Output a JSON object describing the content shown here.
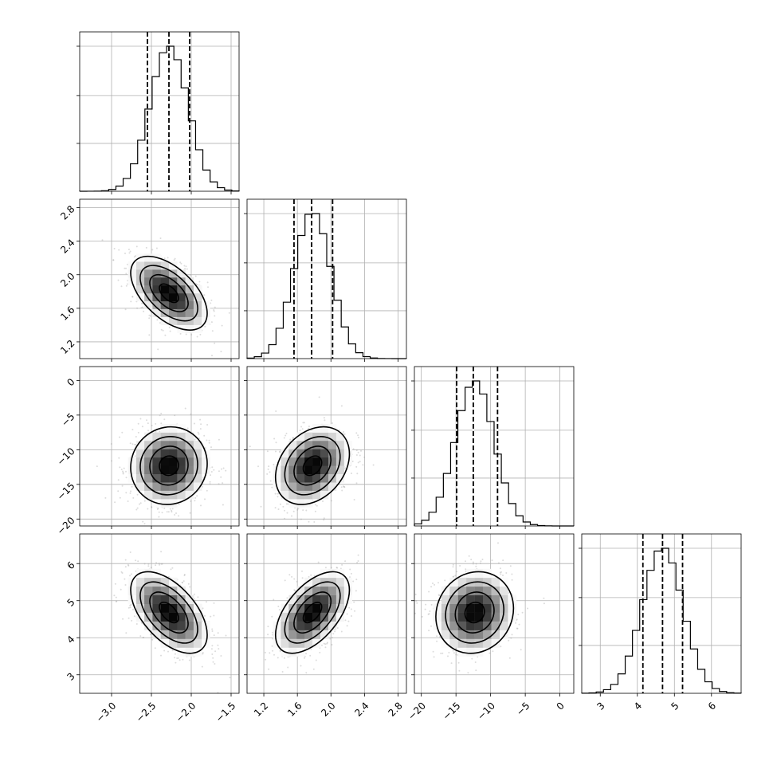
{
  "chart_data": {
    "type": "corner",
    "params": [
      {
        "mean": -2.28,
        "sd": 0.24,
        "range": [
          -3.4,
          -1.4
        ],
        "ticks": [
          -3.0,
          -2.5,
          -2.0,
          -1.5
        ],
        "tick_labels": [
          "−3.0",
          "−2.5",
          "−2.0",
          "−1.5"
        ],
        "quantiles": [
          -2.55,
          -2.28,
          -2.02
        ]
      },
      {
        "mean": 1.78,
        "sd": 0.22,
        "range": [
          1.0,
          2.9
        ],
        "ticks": [
          1.2,
          1.6,
          2.0,
          2.4,
          2.8
        ],
        "tick_labels": [
          "1.2",
          "1.6",
          "2.0",
          "2.4",
          "2.8"
        ],
        "quantiles": [
          1.56,
          1.77,
          2.02
        ]
      },
      {
        "mean": -12.3,
        "sd": 2.8,
        "range": [
          -21,
          2
        ],
        "ticks": [
          -20,
          -15,
          -10,
          -5,
          0
        ],
        "tick_labels": [
          "−20",
          "−15",
          "−10",
          "−5",
          "0"
        ],
        "quantiles": [
          -14.9,
          -12.5,
          -9.0
        ]
      },
      {
        "mean": 4.68,
        "sd": 0.55,
        "range": [
          2.5,
          6.8
        ],
        "ticks": [
          3,
          4,
          5,
          6
        ],
        "tick_labels": [
          "3",
          "4",
          "5",
          "6"
        ],
        "quantiles": [
          4.15,
          4.68,
          5.22
        ]
      }
    ],
    "correlations": [
      {
        "pair": [
          0,
          1
        ],
        "r": -0.55
      },
      {
        "pair": [
          0,
          2
        ],
        "r": 0.05
      },
      {
        "pair": [
          1,
          2
        ],
        "r": 0.3
      },
      {
        "pair": [
          0,
          3
        ],
        "r": -0.55
      },
      {
        "pair": [
          1,
          3
        ],
        "r": 0.55
      },
      {
        "pair": [
          2,
          3
        ],
        "r": 0.1
      }
    ],
    "contour_levels_sigma": [
      0.5,
      1.0,
      1.5,
      2.0
    ],
    "grid": true,
    "title": "",
    "xlabel": "",
    "ylabel": ""
  }
}
